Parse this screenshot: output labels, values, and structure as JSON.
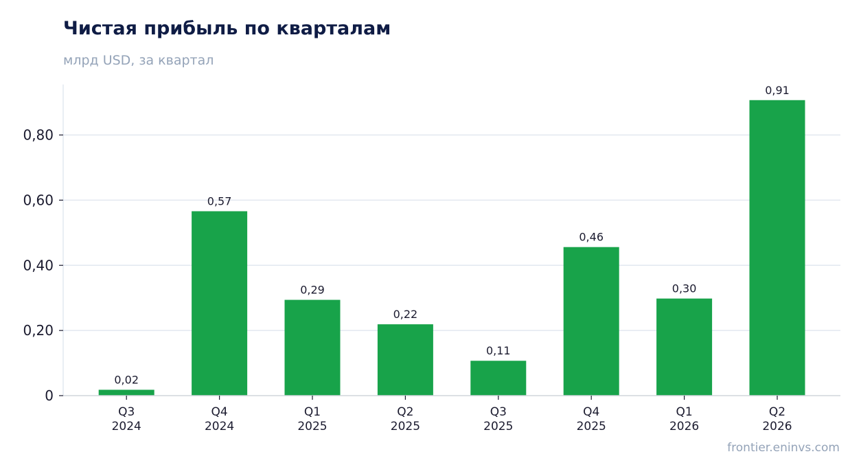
{
  "chart_data": {
    "type": "bar",
    "title": "Чистая прибыль по кварталам",
    "subtitle": "млрд USD, за квартал",
    "xlabel": "",
    "ylabel": "",
    "categories": [
      [
        "Q3",
        "2024"
      ],
      [
        "Q4",
        "2024"
      ],
      [
        "Q1",
        "2025"
      ],
      [
        "Q2",
        "2025"
      ],
      [
        "Q3",
        "2025"
      ],
      [
        "Q4",
        "2025"
      ],
      [
        "Q1",
        "2026"
      ],
      [
        "Q2",
        "2026"
      ]
    ],
    "values": [
      0.018,
      0.566,
      0.294,
      0.219,
      0.107,
      0.456,
      0.298,
      0.907
    ],
    "value_labels": [
      "0,02",
      "0,57",
      "0,29",
      "0,22",
      "0,11",
      "0,46",
      "0,30",
      "0,91"
    ],
    "ylim": [
      0,
      0.955
    ],
    "yticks": [
      0,
      0.2,
      0.4,
      0.6,
      0.8
    ],
    "ytick_labels": [
      "0",
      "0,20",
      "0,40",
      "0,60",
      "0,80"
    ],
    "grid": true,
    "bar_color": "#18a34a",
    "grid_color": "#e2e8f0",
    "source": "frontier.eninvs.com"
  }
}
